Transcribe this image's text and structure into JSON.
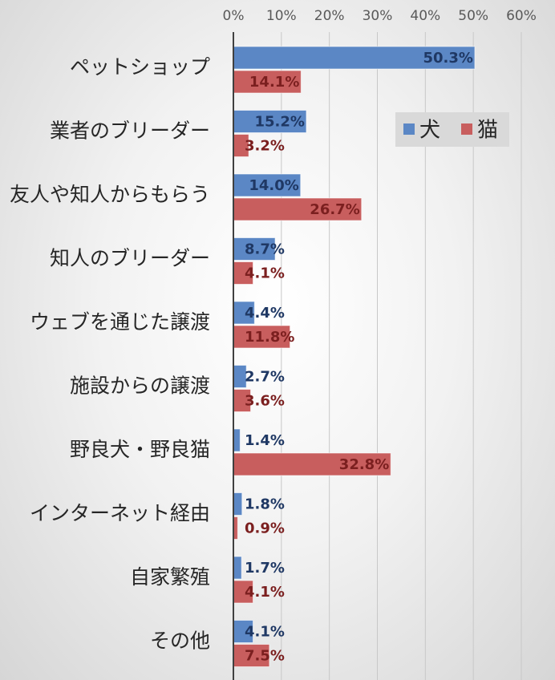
{
  "chart_data": {
    "type": "hbar",
    "categories": [
      "ペットショップ",
      "業者のブリーダー",
      "友人や知人からもらう",
      "知人のブリーダー",
      "ウェブを通じた譲渡",
      "施設からの譲渡",
      "野良犬・野良猫",
      "インターネット経由",
      "自家繁殖",
      "その他"
    ],
    "series": [
      {
        "name": "犬",
        "color": "#5b87c5",
        "label_color": "#1f3864",
        "values": [
          50.3,
          15.2,
          14.0,
          8.7,
          4.4,
          2.7,
          1.4,
          1.8,
          1.7,
          4.1
        ],
        "value_labels": [
          "50.3%",
          "15.2%",
          "14.0%",
          "8.7%",
          "4.4%",
          "2.7%",
          "1.4%",
          "1.8%",
          "1.7%",
          "4.1%"
        ]
      },
      {
        "name": "猫",
        "color": "#c85e5e",
        "label_color": "#7b1f1f",
        "values": [
          14.1,
          3.2,
          26.7,
          4.1,
          11.8,
          3.6,
          32.8,
          0.9,
          4.1,
          7.5
        ],
        "value_labels": [
          "14.1%",
          "3.2%",
          "26.7%",
          "4.1%",
          "11.8%",
          "3.6%",
          "32.8%",
          "0.9%",
          "4.1%",
          "7.5%"
        ]
      }
    ],
    "xlim": [
      0,
      60
    ],
    "xticks": [
      {
        "value": 0,
        "label": "0%"
      },
      {
        "value": 10,
        "label": "10%"
      },
      {
        "value": 20,
        "label": "20%"
      },
      {
        "value": 30,
        "label": "30%"
      },
      {
        "value": 40,
        "label": "40%"
      },
      {
        "value": 50,
        "label": "50%"
      },
      {
        "value": 60,
        "label": "60%"
      }
    ],
    "grid": true,
    "legend": "upper-right"
  }
}
